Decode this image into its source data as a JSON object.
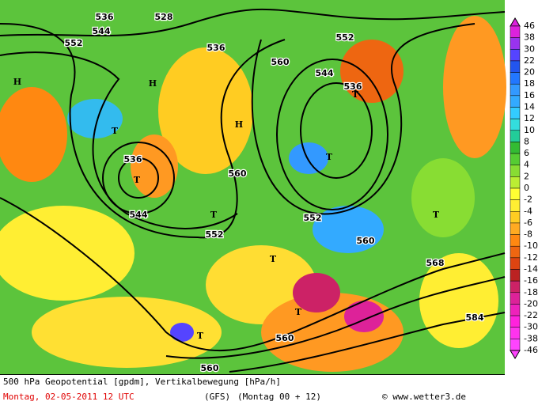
{
  "header": {
    "title": "500 hPa Geopotential [gpdm], Vertikalbewegung [hPa/h]",
    "date": "Montag, 02-05-2011   12 UTC",
    "model": "(GFS)",
    "run": "(Montag 00 + 12)",
    "credit": "© www.wetter3.de"
  },
  "legend": {
    "levels": [
      46,
      38,
      30,
      22,
      20,
      18,
      16,
      14,
      12,
      10,
      8,
      6,
      4,
      2,
      0,
      -2,
      -4,
      -6,
      -8,
      -10,
      -12,
      -14,
      -16,
      -18,
      -20,
      -22,
      -30,
      -38,
      -46
    ],
    "colors": [
      "#dd22dd",
      "#9933ee",
      "#5544ff",
      "#2255ee",
      "#2277ff",
      "#3399ff",
      "#33aaff",
      "#33ccff",
      "#33dddd",
      "#22cc99",
      "#33bb33",
      "#55cc33",
      "#88dd33",
      "#bbee33",
      "#ffff33",
      "#ffee33",
      "#ffcc22",
      "#ffaa22",
      "#ff8811",
      "#ee6611",
      "#dd4411",
      "#bb2222",
      "#cc2266",
      "#dd2299",
      "#ee22bb",
      "#ff22dd",
      "#ff33ee",
      "#ff44ff"
    ]
  },
  "map_labels": [
    "536",
    "544",
    "528",
    "552",
    "536",
    "H",
    "H",
    "T",
    "536",
    "T",
    "544",
    "552",
    "H",
    "560",
    "552",
    "544",
    "536",
    "T",
    "T",
    "560",
    "552",
    "T",
    "T",
    "560",
    "568",
    "T",
    "T",
    "560",
    "584",
    "T",
    "560"
  ]
}
